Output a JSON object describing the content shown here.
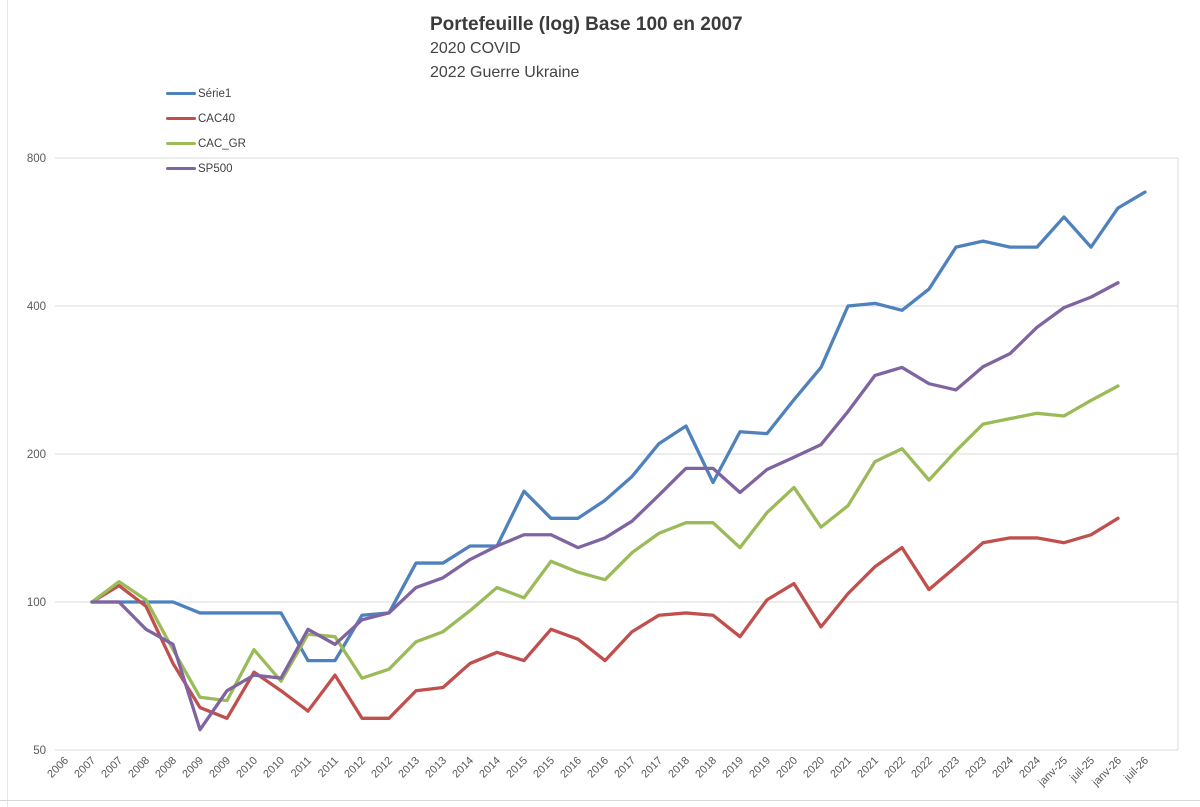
{
  "chart_data": {
    "type": "line",
    "title": "Portefeuille (log) Base 100 en 2007",
    "subtitle_lines": [
      "2020 COVID",
      "2022 Guerre Ukraine"
    ],
    "legend_position": "top-left",
    "grid": true,
    "y_axis": {
      "scale": "log2",
      "ticks": [
        800,
        400,
        200,
        100,
        50
      ],
      "ylim": [
        50,
        800
      ]
    },
    "x_labels": [
      "2006",
      "2007",
      "2007",
      "2008",
      "2008",
      "2009",
      "2009",
      "2010",
      "2010",
      "2011",
      "2011",
      "2012",
      "2012",
      "2013",
      "2013",
      "2014",
      "2014",
      "2015",
      "2015",
      "2016",
      "2016",
      "2017",
      "2017",
      "2018",
      "2018",
      "2019",
      "2019",
      "2020",
      "2020",
      "2021",
      "2021",
      "2022",
      "2022",
      "2023",
      "2023",
      "2024",
      "2024",
      "janv-25",
      "juil-25",
      "janv-26",
      "juil-26"
    ],
    "series": [
      {
        "name": "Série1",
        "color": "#4F81BD",
        "values": [
          null,
          100,
          100,
          100,
          100,
          95,
          95,
          95,
          95,
          76,
          76,
          94,
          95,
          120,
          120,
          130,
          130,
          168,
          148,
          148,
          161,
          180,
          210,
          228,
          175,
          222,
          220,
          258,
          300,
          400,
          405,
          392,
          433,
          527,
          542,
          527,
          527,
          607,
          527,
          633,
          682
        ]
      },
      {
        "name": "CAC40",
        "color": "#C0504D",
        "values": [
          null,
          100,
          108,
          98,
          75,
          61,
          58,
          72,
          66,
          60,
          71,
          58,
          58,
          66,
          67,
          75,
          79,
          76,
          88,
          84,
          76,
          87,
          94,
          95,
          94,
          85,
          101,
          109,
          89,
          104,
          118,
          129,
          106,
          118,
          132,
          135,
          135,
          132,
          137,
          148,
          null
        ]
      },
      {
        "name": "CAC_GR",
        "color": "#9BBB59",
        "values": [
          null,
          100,
          110,
          101,
          80,
          64,
          63,
          80,
          69,
          86,
          85,
          70,
          73,
          83,
          87,
          96,
          107,
          102,
          121,
          115,
          111,
          126,
          138,
          145,
          145,
          129,
          152,
          171,
          142,
          157,
          193,
          205,
          177,
          203,
          230,
          236,
          242,
          239,
          257,
          275,
          null
        ]
      },
      {
        "name": "SP500",
        "color": "#8064A2",
        "values": [
          null,
          100,
          100,
          88,
          82,
          55,
          66,
          71,
          70,
          88,
          82,
          92,
          95,
          107,
          112,
          122,
          130,
          137,
          137,
          129,
          135,
          146,
          165,
          187,
          187,
          167,
          186,
          197,
          209,
          244,
          289,
          300,
          278,
          270,
          301,
          320,
          362,
          397,
          417,
          446,
          null
        ]
      }
    ]
  }
}
